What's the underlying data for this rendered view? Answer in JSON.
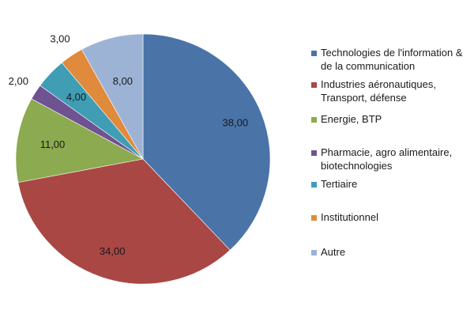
{
  "chart_data": {
    "type": "pie",
    "title": "",
    "start_angle_deg": 0,
    "direction": "clockwise",
    "legend_position": "right",
    "slices": [
      {
        "label": "Technologies de l'information &\nde la communication",
        "value": 38,
        "value_label": "38,00",
        "color": "#4a73a8"
      },
      {
        "label": "Industries aéronautiques,\nTransport, défense",
        "value": 34,
        "value_label": "34,00",
        "color": "#a94744"
      },
      {
        "label": "Energie, BTP",
        "value": 11,
        "value_label": "11,00",
        "color": "#8caa4f"
      },
      {
        "label": "Pharmacie, agro alimentaire,\nbiotechnologies",
        "value": 2,
        "value_label": "2,00",
        "color": "#6f5291"
      },
      {
        "label": "Tertiaire",
        "value": 4,
        "value_label": "4,00",
        "color": "#3f9db4"
      },
      {
        "label": "Institutionnel",
        "value": 3,
        "value_label": "3,00",
        "color": "#e08a3c"
      },
      {
        "label": "Autre",
        "value": 8,
        "value_label": "8,00",
        "color": "#9db3d6"
      }
    ]
  }
}
